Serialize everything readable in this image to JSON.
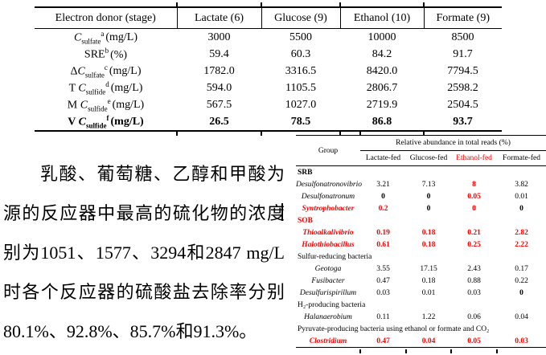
{
  "sulfate_table": {
    "columns": [
      "Electron donor (stage)",
      "Lactate (6)",
      "Glucose (9)",
      "Ethanol (10)",
      "Formate (9)"
    ],
    "rows": [
      {
        "prefix": "",
        "c": "C",
        "sub": "sulfate",
        "sup": "a",
        "unit": "(mg/L)",
        "bold": false,
        "values": [
          "3000",
          "5500",
          "10000",
          "8500"
        ]
      },
      {
        "prefix": "SRE",
        "c": "",
        "sub": "",
        "sup": "b",
        "unit": "(%)",
        "bold": false,
        "values": [
          "59.4",
          "60.3",
          "84.2",
          "91.7"
        ]
      },
      {
        "prefix": "Δ",
        "c": "C",
        "sub": "sulfate",
        "sup": "c",
        "unit": "(mg/L)",
        "bold": false,
        "values": [
          "1782.0",
          "3316.5",
          "8420.0",
          "7794.5"
        ]
      },
      {
        "prefix": "T ",
        "c": "C",
        "sub": "sulfide",
        "sup": "d",
        "unit": "(mg/L)",
        "bold": false,
        "values": [
          "594.0",
          "1105.5",
          "2806.7",
          "2598.2"
        ]
      },
      {
        "prefix": "M ",
        "c": "C",
        "sub": "sulfide",
        "sup": "e",
        "unit": "(mg/L)",
        "bold": false,
        "values": [
          "567.5",
          "1027.0",
          "2719.9",
          "2504.5"
        ]
      },
      {
        "prefix": "V ",
        "c": "C",
        "sub": "sulfide",
        "sup": "f",
        "unit": "(mg/L)",
        "bold": true,
        "values": [
          "26.5",
          "78.5",
          "86.8",
          "93.7"
        ]
      }
    ]
  },
  "abundance_table": {
    "group_header": "Group",
    "span_header": "Relative abundance in total reads (%)",
    "columns": [
      {
        "label": "Lactate-fed",
        "style": "n"
      },
      {
        "label": "Glucose-fed",
        "style": "n"
      },
      {
        "label": "Ethanol-fed",
        "style": "r"
      },
      {
        "label": "Formate-fed",
        "style": "n"
      }
    ],
    "rows": [
      {
        "name": "SRB",
        "type": "section",
        "style": "sb"
      },
      {
        "name": "Desulfonatronovibrio",
        "type": "genus",
        "style": "n",
        "values": [
          {
            "t": "3.21",
            "s": "n"
          },
          {
            "t": "7.13",
            "s": "n"
          },
          {
            "t": "8",
            "s": "r"
          },
          {
            "t": "3.82",
            "s": "n"
          }
        ]
      },
      {
        "name": "Desulfonatronum",
        "type": "genus",
        "style": "n",
        "values": [
          {
            "t": "0",
            "s": "b"
          },
          {
            "t": "0",
            "s": "b"
          },
          {
            "t": "0.05",
            "s": "r"
          },
          {
            "t": "0.01",
            "s": "n"
          }
        ]
      },
      {
        "name": "Syntrophobacter",
        "type": "genus",
        "style": "r",
        "values": [
          {
            "t": "0.2",
            "s": "r"
          },
          {
            "t": "0",
            "s": "b"
          },
          {
            "t": "0",
            "s": "r"
          },
          {
            "t": "0",
            "s": "b"
          }
        ]
      },
      {
        "name": "SOB",
        "type": "section",
        "style": "rb"
      },
      {
        "name": "Thioalkalivibrio",
        "type": "genus",
        "style": "r",
        "values": [
          {
            "t": "0.19",
            "s": "r"
          },
          {
            "t": "0.18",
            "s": "r"
          },
          {
            "t": "0.21",
            "s": "r"
          },
          {
            "t": "2.82",
            "s": "r"
          }
        ]
      },
      {
        "name": "Halothiobacillus",
        "type": "genus",
        "style": "r",
        "values": [
          {
            "t": "0.61",
            "s": "r"
          },
          {
            "t": "0.18",
            "s": "r"
          },
          {
            "t": "0.25",
            "s": "r"
          },
          {
            "t": "2.22",
            "s": "r"
          }
        ]
      },
      {
        "name": "Sulfur-reducing bacteria",
        "type": "section",
        "style": "sn"
      },
      {
        "name": "Geotoga",
        "type": "genus",
        "style": "n",
        "values": [
          {
            "t": "3.55",
            "s": "n"
          },
          {
            "t": "17.15",
            "s": "n"
          },
          {
            "t": "2.43",
            "s": "n"
          },
          {
            "t": "0.17",
            "s": "n"
          }
        ]
      },
      {
        "name": "Fusibacter",
        "type": "genus",
        "style": "n",
        "values": [
          {
            "t": "0.47",
            "s": "n"
          },
          {
            "t": "0.18",
            "s": "n"
          },
          {
            "t": "0.88",
            "s": "n"
          },
          {
            "t": "0.22",
            "s": "n"
          }
        ]
      },
      {
        "name": "Desulfurispirillum",
        "type": "genus",
        "style": "n",
        "values": [
          {
            "t": "0.03",
            "s": "n"
          },
          {
            "t": "0.01",
            "s": "n"
          },
          {
            "t": "0.03",
            "s": "n"
          },
          {
            "t": "0",
            "s": "b"
          }
        ]
      },
      {
        "name": "H₂-producing bacteria",
        "type": "section",
        "style": "sn"
      },
      {
        "name": "Halanaerobium",
        "type": "genus",
        "style": "n",
        "values": [
          {
            "t": "0.11",
            "s": "n"
          },
          {
            "t": "1.22",
            "s": "n"
          },
          {
            "t": "0.06",
            "s": "n"
          },
          {
            "t": "0.04",
            "s": "n"
          }
        ]
      },
      {
        "name": "Pyruvate-producing bacteria using ethanol or formate and CO₂",
        "type": "section-wide",
        "style": "sn"
      },
      {
        "name": "Clostridium",
        "type": "genus",
        "style": "r",
        "values": [
          {
            "t": "0.47",
            "s": "r"
          },
          {
            "t": "0.04",
            "s": "r"
          },
          {
            "t": "0.05",
            "s": "r"
          },
          {
            "t": "0.03",
            "s": "r"
          }
        ]
      }
    ]
  },
  "paragraph": {
    "lines": [
      "乳酸、葡萄糖、乙醇和甲酸为碳",
      "源的反应器中最高的硫化物的浓度分",
      "别为1051、1577、3294和2847 mg/L",
      "时各个反应器的硫酸盐去除率分别为",
      "80.1%、92.8%、85.7%和91.3%。"
    ]
  },
  "colors": {
    "highlight_red": "#ff0000",
    "text_black": "#000000"
  }
}
